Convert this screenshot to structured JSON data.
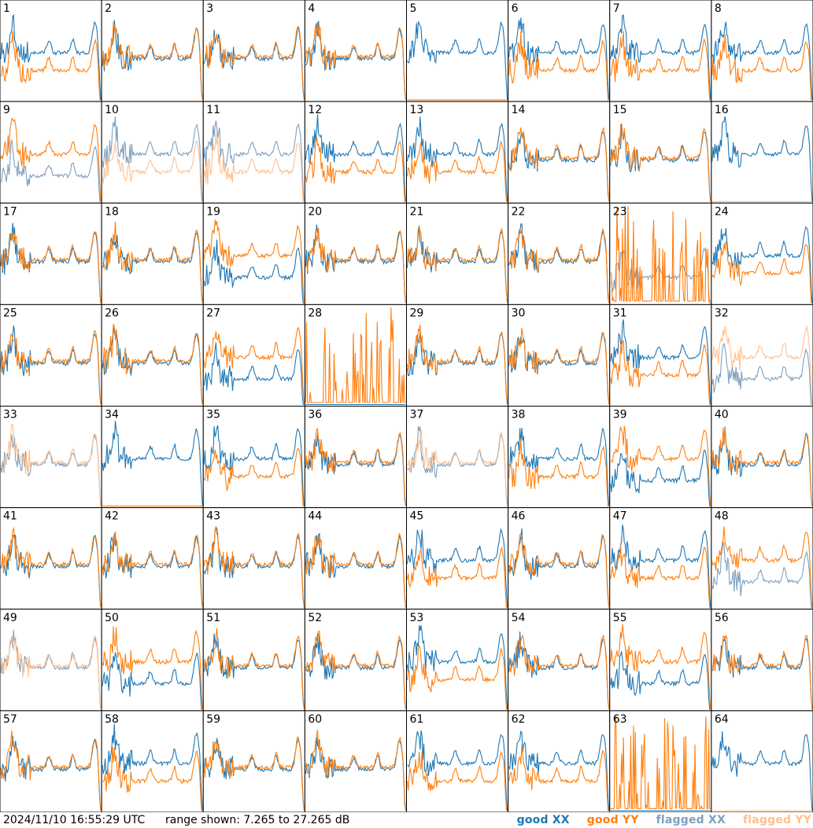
{
  "footer": {
    "timestamp": "2024/11/10 16:55:29 UTC",
    "range_text": "range shown: 7.265 to 27.265 dB"
  },
  "legend": [
    {
      "label": "good XX",
      "color": "#1f77b4"
    },
    {
      "label": "good YY",
      "color": "#ff7f0e"
    },
    {
      "label": "flagged XX",
      "color": "#7f9fbf"
    },
    {
      "label": "flagged YY",
      "color": "#ffc08f"
    }
  ],
  "chart_data": {
    "type": "line",
    "title": "",
    "layout": "8x8 small multiples",
    "range_db": [
      7.265,
      27.265
    ],
    "panels_count": 64,
    "panel_labels": [
      "1",
      "2",
      "3",
      "4",
      "5",
      "6",
      "7",
      "8",
      "9",
      "10",
      "11",
      "12",
      "13",
      "14",
      "15",
      "16",
      "17",
      "18",
      "19",
      "20",
      "21",
      "22",
      "23",
      "24",
      "25",
      "26",
      "27",
      "28",
      "29",
      "30",
      "31",
      "32",
      "33",
      "34",
      "35",
      "36",
      "37",
      "38",
      "39",
      "40",
      "41",
      "42",
      "43",
      "44",
      "45",
      "46",
      "47",
      "48",
      "49",
      "50",
      "51",
      "52",
      "53",
      "54",
      "55",
      "56",
      "57",
      "58",
      "59",
      "60",
      "61",
      "62",
      "63",
      "64"
    ],
    "panel_state": {
      "flagged_XX": [
        "9",
        "10",
        "11",
        "23",
        "32",
        "33",
        "37",
        "48",
        "49"
      ],
      "flagged_YY": [
        "10",
        "11",
        "16",
        "32",
        "33",
        "37",
        "49",
        "64"
      ]
    },
    "panel_kind": {
      "xx_above": [
        "1",
        "5",
        "6",
        "7",
        "8",
        "10",
        "11",
        "12",
        "13",
        "16",
        "24",
        "31",
        "34",
        "35",
        "38",
        "45",
        "47",
        "53",
        "58",
        "61",
        "62",
        "64"
      ],
      "yy_above": [
        "9",
        "19",
        "23",
        "27",
        "28",
        "32",
        "39",
        "48",
        "50",
        "55",
        "63"
      ],
      "dropout_xx": [
        "28",
        "63"
      ],
      "dropout_yy": [
        "5",
        "16",
        "34",
        "64"
      ],
      "spiky": [
        "23",
        "28",
        "63"
      ]
    }
  }
}
